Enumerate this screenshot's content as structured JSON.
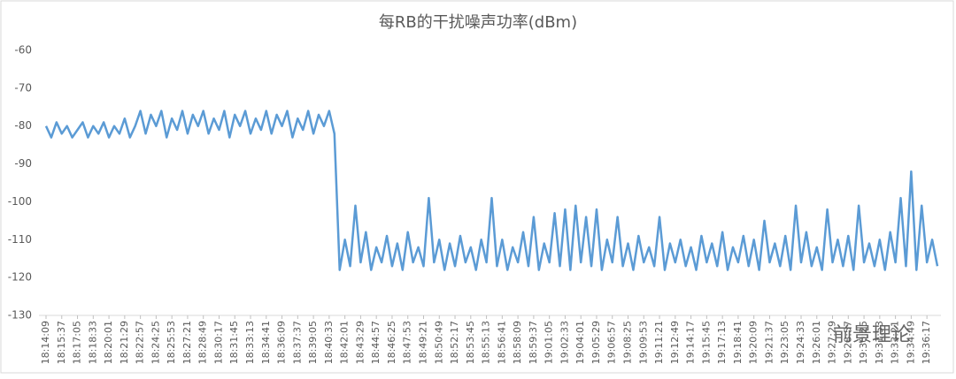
{
  "chart_data": {
    "type": "line",
    "title": "每RB的干扰噪声功率(dBm)",
    "watermark": "前景理论",
    "categories": [
      "18:14:09",
      null,
      null,
      "18:15:37",
      null,
      null,
      "18:17:05",
      null,
      null,
      "18:18:33",
      null,
      null,
      "18:20:01",
      null,
      null,
      "18:21:29",
      null,
      null,
      "18:22:57",
      null,
      null,
      "18:24:25",
      null,
      null,
      "18:25:53",
      null,
      null,
      "18:27:21",
      null,
      null,
      "18:28:49",
      null,
      null,
      "18:30:17",
      null,
      null,
      "18:31:45",
      null,
      null,
      "18:33:13",
      null,
      null,
      "18:34:41",
      null,
      null,
      "18:36:09",
      null,
      null,
      "18:37:37",
      null,
      null,
      "18:39:05",
      null,
      null,
      "18:40:33",
      null,
      null,
      "18:42:01",
      null,
      null,
      "18:43:29",
      null,
      null,
      "18:44:57",
      null,
      null,
      "18:46:25",
      null,
      null,
      "18:47:53",
      null,
      null,
      "18:49:21",
      null,
      null,
      "18:50:49",
      null,
      null,
      "18:52:17",
      null,
      null,
      "18:53:45",
      null,
      null,
      "18:55:13",
      null,
      null,
      "18:56:41",
      null,
      null,
      "18:58:09",
      null,
      null,
      "18:59:37",
      null,
      null,
      "19:01:05",
      null,
      null,
      "19:02:33",
      null,
      null,
      "19:04:01",
      null,
      null,
      "19:05:29",
      null,
      null,
      "19:06:57",
      null,
      null,
      "19:08:25",
      null,
      null,
      "19:09:53",
      null,
      null,
      "19:11:21",
      null,
      null,
      "19:12:49",
      null,
      null,
      "19:14:17",
      null,
      null,
      "19:15:45",
      null,
      null,
      "19:17:13",
      null,
      null,
      "19:18:41",
      null,
      null,
      "19:20:09",
      null,
      null,
      "19:21:37",
      null,
      null,
      "19:23:05",
      null,
      null,
      "19:24:33",
      null,
      null,
      "19:26:01",
      null,
      null,
      "19:27:29",
      null,
      null,
      "19:28:57",
      null,
      null,
      "19:30:25",
      null,
      null,
      "19:31:53",
      null,
      null,
      "19:33:21",
      null,
      null,
      "19:34:49",
      null,
      null,
      "19:36:17",
      null,
      null
    ],
    "series": [
      {
        "color": "#5b9bd5",
        "values": [
          -80,
          -83,
          -79,
          -82,
          -80,
          -83,
          -81,
          -79,
          -83,
          -80,
          -82,
          -79,
          -83,
          -80,
          -82,
          -78,
          -83,
          -80,
          -76,
          -82,
          -77,
          -80,
          -76,
          -83,
          -78,
          -81,
          -76,
          -82,
          -77,
          -80,
          -76,
          -82,
          -78,
          -81,
          -76,
          -83,
          -77,
          -80,
          -76,
          -82,
          -78,
          -81,
          -76,
          -82,
          -77,
          -80,
          -76,
          -83,
          -78,
          -81,
          -76,
          -82,
          -77,
          -80,
          -76,
          -82,
          -118,
          -110,
          -117,
          -101,
          -116,
          -108,
          -118,
          -112,
          -116,
          -109,
          -117,
          -111,
          -118,
          -108,
          -116,
          -112,
          -117,
          -99,
          -116,
          -110,
          -118,
          -111,
          -117,
          -109,
          -116,
          -112,
          -118,
          -110,
          -116,
          -99,
          -117,
          -110,
          -118,
          -112,
          -116,
          -108,
          -117,
          -104,
          -118,
          -111,
          -116,
          -103,
          -117,
          -102,
          -118,
          -101,
          -116,
          -104,
          -117,
          -102,
          -118,
          -110,
          -116,
          -104,
          -117,
          -111,
          -118,
          -109,
          -116,
          -112,
          -117,
          -104,
          -118,
          -111,
          -116,
          -110,
          -117,
          -112,
          -118,
          -109,
          -116,
          -111,
          -117,
          -108,
          -118,
          -112,
          -116,
          -109,
          -117,
          -110,
          -118,
          -105,
          -116,
          -111,
          -117,
          -109,
          -118,
          -101,
          -116,
          -108,
          -117,
          -112,
          -118,
          -102,
          -116,
          -110,
          -117,
          -109,
          -118,
          -101,
          -116,
          -111,
          -117,
          -110,
          -118,
          -108,
          -116,
          -99,
          -117,
          -92,
          -118,
          -101,
          -116,
          -110,
          -117
        ]
      }
    ],
    "ylim": [
      -130,
      -60
    ],
    "yticks": [
      -60,
      -70,
      -80,
      -90,
      -100,
      -110,
      -120,
      -130
    ]
  }
}
